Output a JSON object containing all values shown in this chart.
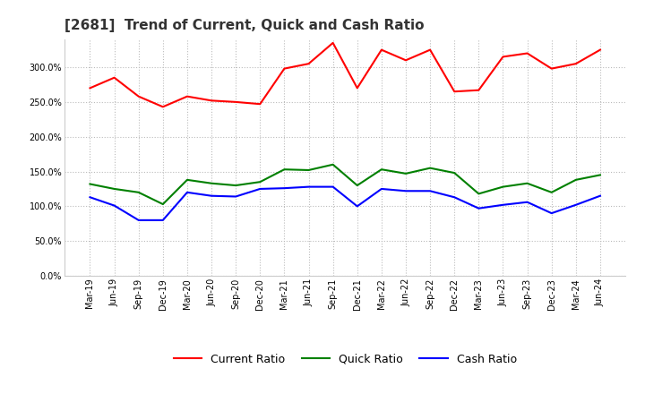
{
  "title": "[2681]  Trend of Current, Quick and Cash Ratio",
  "labels": [
    "Mar-19",
    "Jun-19",
    "Sep-19",
    "Dec-19",
    "Mar-20",
    "Jun-20",
    "Sep-20",
    "Dec-20",
    "Mar-21",
    "Jun-21",
    "Sep-21",
    "Dec-21",
    "Mar-22",
    "Jun-22",
    "Sep-22",
    "Dec-22",
    "Mar-23",
    "Jun-23",
    "Sep-23",
    "Dec-23",
    "Mar-24",
    "Jun-24"
  ],
  "current_ratio": [
    270,
    285,
    258,
    243,
    258,
    252,
    250,
    247,
    298,
    305,
    335,
    270,
    325,
    310,
    325,
    265,
    267,
    315,
    320,
    298,
    305,
    325
  ],
  "quick_ratio": [
    132,
    125,
    120,
    103,
    138,
    133,
    130,
    135,
    153,
    152,
    160,
    130,
    153,
    147,
    155,
    148,
    118,
    128,
    133,
    120,
    138,
    145
  ],
  "cash_ratio": [
    113,
    101,
    80,
    80,
    120,
    115,
    114,
    125,
    126,
    128,
    128,
    100,
    125,
    122,
    122,
    113,
    97,
    102,
    106,
    90,
    102,
    115
  ],
  "current_color": "#ff0000",
  "quick_color": "#008000",
  "cash_color": "#0000ff",
  "ylim": [
    0,
    340
  ],
  "yticks": [
    0,
    50,
    100,
    150,
    200,
    250,
    300
  ],
  "background_color": "#ffffff",
  "grid_color": "#bbbbbb",
  "title_fontsize": 11,
  "title_color": "#333333",
  "tick_fontsize": 7,
  "legend_labels": [
    "Current Ratio",
    "Quick Ratio",
    "Cash Ratio"
  ],
  "legend_fontsize": 9
}
